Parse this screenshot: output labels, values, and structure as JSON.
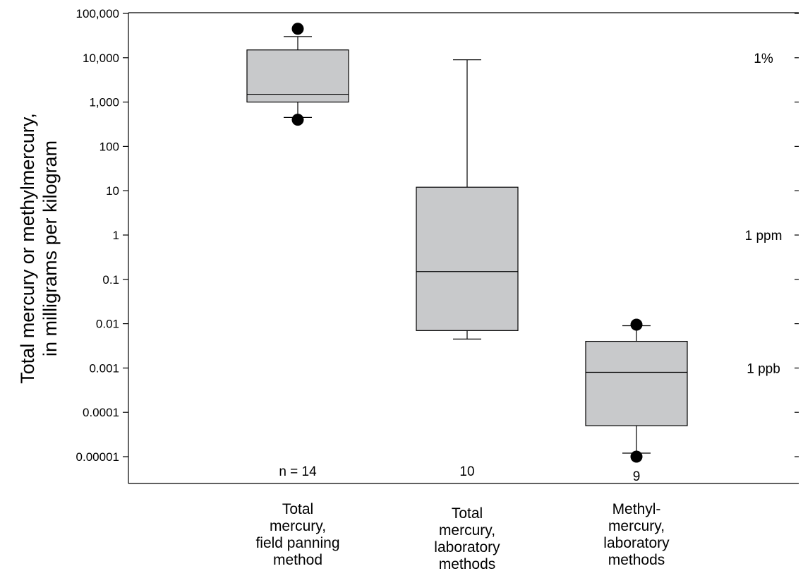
{
  "chart_data": {
    "type": "box",
    "ylabel_lines": [
      "Total mercury or methylmercury,",
      "in milligrams per kilogram"
    ],
    "yscale": "log",
    "ylim": [
      5e-06,
      100000
    ],
    "yticks": [
      {
        "value": 100000,
        "label": "100,000"
      },
      {
        "value": 10000,
        "label": "10,000"
      },
      {
        "value": 1000,
        "label": "1,000"
      },
      {
        "value": 100,
        "label": "100"
      },
      {
        "value": 10,
        "label": "10"
      },
      {
        "value": 1,
        "label": "1"
      },
      {
        "value": 0.1,
        "label": "0.1"
      },
      {
        "value": 0.01,
        "label": "0.01"
      },
      {
        "value": 0.001,
        "label": "0.001"
      },
      {
        "value": 0.0001,
        "label": "0.0001"
      },
      {
        "value": 1e-05,
        "label": "0.00001"
      }
    ],
    "right_annotations": [
      {
        "value": 10000,
        "label": "1%"
      },
      {
        "value": 1,
        "label": "1 ppm"
      },
      {
        "value": 0.001,
        "label": "1 ppb"
      }
    ],
    "categories": [
      {
        "lines": [
          "Total",
          "mercury,",
          "field panning",
          "method"
        ]
      },
      {
        "lines": [
          "Total",
          "mercury,",
          "laboratory",
          "methods"
        ]
      },
      {
        "lines": [
          "Methyl-",
          "mercury,",
          "laboratory",
          "methods"
        ]
      }
    ],
    "boxes": [
      {
        "whisker_low": 450,
        "q1": 1000,
        "median": 1500,
        "q3": 15000,
        "whisker_high": 30000,
        "outliers": [
          45000,
          400
        ],
        "n_label": "n = 14"
      },
      {
        "whisker_low": 0.0045,
        "q1": 0.007,
        "median": 0.15,
        "q3": 12,
        "whisker_high": 9000,
        "outliers": [],
        "n_label": "10"
      },
      {
        "whisker_low": 1.2e-05,
        "q1": 5e-05,
        "median": 0.0008,
        "q3": 0.004,
        "whisker_high": 0.009,
        "outliers": [
          0.0095,
          1e-05
        ],
        "n_label": "9"
      }
    ],
    "box_fill": "#c8c9cb",
    "line_color": "#000000",
    "grid": false
  }
}
